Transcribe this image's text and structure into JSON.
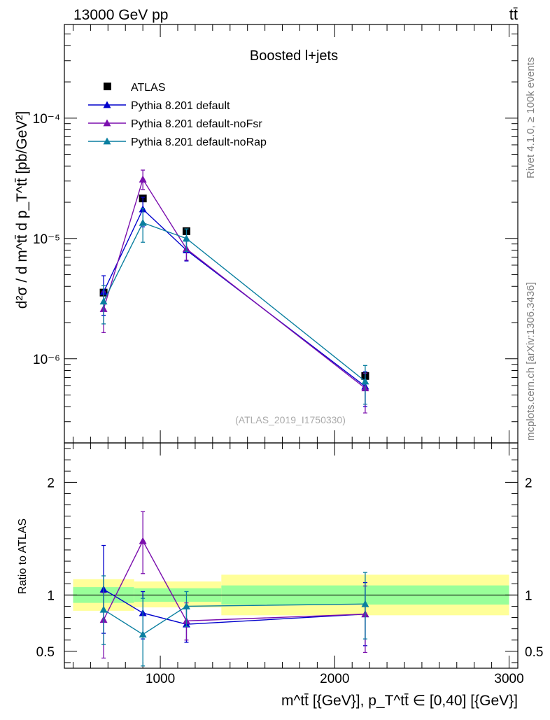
{
  "header": {
    "energy_label": "13000 GeV pp",
    "process_label": "tt̄"
  },
  "side_labels": {
    "rivet": "Rivet 4.1.0, ≥ 100k events",
    "mcplots": "mcplots.cern.ch [arXiv:1306.3436]"
  },
  "chart_data": [
    {
      "type": "line",
      "title": "Boosted l+jets",
      "analysis_label": "(ATLAS_2019_I1750330)",
      "ylabel": "d²σ / d m^tt̄ d p_T^tt̄ [pb/GeV²]",
      "yscale": "log",
      "ylim": [
        2e-07,
        0.0006
      ],
      "xlim": [
        450,
        3050
      ],
      "y_tick_labels": [
        {
          "value": 1e-06,
          "label": "10⁻⁶"
        },
        {
          "value": 1e-05,
          "label": "10⁻⁵"
        },
        {
          "value": 0.0001,
          "label": "10⁻⁴"
        }
      ],
      "legend_position": "top-left",
      "series": [
        {
          "name": "ATLAS",
          "color": "#000000",
          "marker": "square",
          "x": [
            675,
            900,
            1150,
            2175
          ],
          "values": [
            3.55e-06,
            2.15e-05,
            1.15e-05,
            7.2e-07
          ],
          "err_low": [
            3.45e-06,
            2.05e-05,
            1.1e-05,
            6.8e-07
          ],
          "err_high": [
            3.65e-06,
            2.25e-05,
            1.2e-05,
            7.6e-07
          ]
        },
        {
          "name": "Pythia 8.201 default",
          "color": "#0000cc",
          "marker": "triangle",
          "x": [
            675,
            900,
            1150,
            2175
          ],
          "values": [
            3.6e-06,
            1.75e-05,
            8e-06,
            5.9e-07
          ],
          "err_low": [
            2.3e-06,
            1.25e-05,
            6.5e-06,
            4e-07
          ],
          "err_high": [
            4.9e-06,
            2.2e-05,
            9.5e-06,
            7.8e-07
          ]
        },
        {
          "name": "Pythia 8.201 default-noFsr",
          "color": "#7b0fae",
          "marker": "triangle",
          "x": [
            675,
            900,
            1150,
            2175
          ],
          "values": [
            2.6e-06,
            3.1e-05,
            8.2e-06,
            5.7e-07
          ],
          "err_low": [
            1.65e-06,
            2.55e-05,
            6.6e-06,
            3.55e-07
          ],
          "err_high": [
            3.6e-06,
            3.7e-05,
            9.7e-06,
            7.6e-07
          ]
        },
        {
          "name": "Pythia 8.201 default-noRap",
          "color": "#0a7fa0",
          "marker": "triangle",
          "x": [
            675,
            900,
            1150,
            2175
          ],
          "values": [
            3e-06,
            1.35e-05,
            1e-05,
            6.5e-07
          ],
          "err_low": [
            1.95e-06,
            9.3e-06,
            7.8e-06,
            4.2e-07
          ],
          "err_high": [
            4.05e-06,
            1.78e-05,
            1.2e-05,
            8.8e-07
          ]
        }
      ]
    },
    {
      "type": "line",
      "ylabel": "Ratio to ATLAS",
      "xlabel": "m^tt̄ [{GeV}], p_T^tt̄ ∈ [0,40] [{GeV}]",
      "ylim": [
        0.35,
        2.35
      ],
      "xlim": [
        450,
        3050
      ],
      "y_ticks": [
        0.5,
        1,
        2
      ],
      "y_tick_labels": [
        "0.5",
        "1",
        "2"
      ],
      "x_ticks": [
        1000,
        2000,
        3000
      ],
      "x_tick_labels": [
        "1000",
        "2000",
        "3000"
      ],
      "bands": [
        {
          "x0": 500,
          "x1": 850,
          "green": [
            0.93,
            1.07
          ],
          "yellow": [
            0.86,
            1.14
          ]
        },
        {
          "x0": 850,
          "x1": 1350,
          "green": [
            0.94,
            1.06
          ],
          "yellow": [
            0.89,
            1.12
          ]
        },
        {
          "x0": 1350,
          "x1": 3000,
          "green": [
            0.915,
            1.085
          ],
          "yellow": [
            0.82,
            1.18
          ]
        }
      ],
      "band_colors": {
        "green": "#99ff99",
        "yellow": "#ffff99"
      },
      "series": [
        {
          "name": "Pythia 8.201 default",
          "color": "#0000cc",
          "x": [
            675,
            900,
            1150,
            2175
          ],
          "values": [
            1.05,
            0.84,
            0.74,
            0.83
          ],
          "err_low": [
            0.66,
            0.61,
            0.58,
            0.55
          ],
          "err_high": [
            1.44,
            1.03,
            0.9,
            1.11
          ]
        },
        {
          "name": "Pythia 8.201 default-noFsr",
          "color": "#7b0fae",
          "x": [
            675,
            900,
            1150,
            2175
          ],
          "values": [
            0.78,
            1.48,
            0.77,
            0.83
          ],
          "err_low": [
            0.44,
            1.19,
            0.6,
            0.49
          ],
          "err_high": [
            1.02,
            1.74,
            0.93,
            1.08
          ]
        },
        {
          "name": "Pythia 8.201 default-noRap",
          "color": "#0a7fa0",
          "x": [
            675,
            900,
            1150,
            2175
          ],
          "values": [
            0.87,
            0.65,
            0.9,
            0.92
          ],
          "err_low": [
            0.56,
            0.37,
            0.72,
            0.61
          ],
          "err_high": [
            1.17,
            0.97,
            1.03,
            1.2
          ]
        }
      ]
    }
  ]
}
